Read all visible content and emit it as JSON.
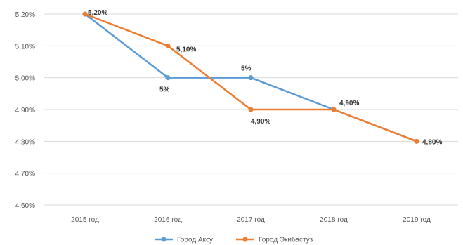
{
  "chart_data": {
    "type": "line",
    "categories": [
      "2015 год",
      "2016 год",
      "2017 год",
      "2018 год",
      "2019 год"
    ],
    "y_ticks": [
      "5,20%",
      "5,10%",
      "5,00%",
      "4,90%",
      "4,80%",
      "4,70%",
      "4,60%"
    ],
    "ylim": [
      4.6,
      5.2
    ],
    "grid": true,
    "legend_position": "bottom",
    "series": [
      {
        "name": "Город Аксу",
        "color": "#5b9bd5",
        "values": [
          5.2,
          5.0,
          5.0,
          4.9,
          4.8
        ],
        "labels": [
          "",
          "5%",
          "5%",
          "",
          ""
        ]
      },
      {
        "name": "Город Экибастуз",
        "color": "#ed7d31",
        "values": [
          5.2,
          5.1,
          4.9,
          4.9,
          4.8
        ],
        "labels": [
          "5,20%",
          "5,10%",
          "4,90%",
          "4,90%",
          "4,80%"
        ]
      }
    ]
  }
}
